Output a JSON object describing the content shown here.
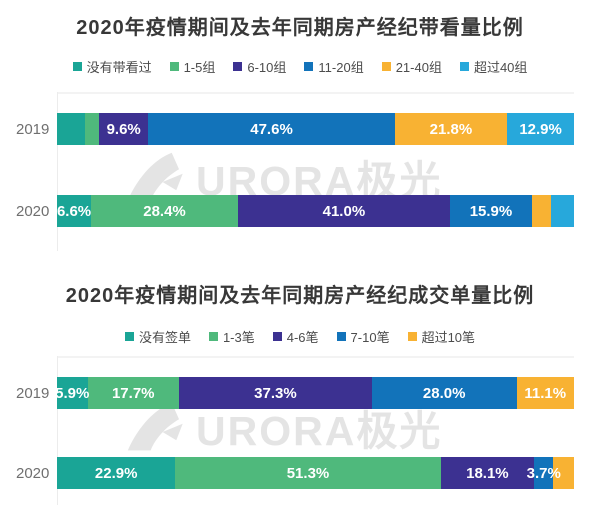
{
  "watermark": {
    "text": "URORA极光",
    "color": "#e4e4e4"
  },
  "chart_data": [
    {
      "type": "bar",
      "variant": "horizontal-stacked",
      "unit": "%",
      "title": "2020年疫情期间及去年同期房产经纪带看量比例",
      "categories": [
        "2019",
        "2020"
      ],
      "legend_position": "top",
      "grid": false,
      "xlim": [
        0,
        100
      ],
      "series": [
        {
          "name": "没有带看过",
          "color": "#1AA596",
          "values": [
            5.5,
            6.6
          ],
          "labels": [
            "",
            "6.6%"
          ]
        },
        {
          "name": "1-5组",
          "color": "#4FB97C",
          "values": [
            2.6,
            28.4
          ],
          "labels": [
            "",
            "28.4%"
          ]
        },
        {
          "name": "6-10组",
          "color": "#3C3191",
          "values": [
            9.6,
            41.0
          ],
          "labels": [
            "9.6%",
            "41.0%"
          ]
        },
        {
          "name": "11-20组",
          "color": "#1273BA",
          "values": [
            47.6,
            15.9
          ],
          "labels": [
            "47.6%",
            "15.9%"
          ]
        },
        {
          "name": "21-40组",
          "color": "#F8B233",
          "values": [
            21.8,
            3.6
          ],
          "labels": [
            "21.8%",
            ""
          ]
        },
        {
          "name": "超过40组",
          "color": "#27A8DB",
          "values": [
            12.9,
            4.5
          ],
          "labels": [
            "12.9%",
            ""
          ]
        }
      ]
    },
    {
      "type": "bar",
      "variant": "horizontal-stacked",
      "unit": "%",
      "title": "2020年疫情期间及去年同期房产经纪成交单量比例",
      "categories": [
        "2019",
        "2020"
      ],
      "legend_position": "top",
      "grid": false,
      "xlim": [
        0,
        100
      ],
      "series": [
        {
          "name": "没有签单",
          "color": "#1AA596",
          "values": [
            5.9,
            22.9
          ],
          "labels": [
            "5.9%",
            "22.9%"
          ]
        },
        {
          "name": "1-3笔",
          "color": "#4FB97C",
          "values": [
            17.7,
            51.3
          ],
          "labels": [
            "17.7%",
            "51.3%"
          ]
        },
        {
          "name": "4-6笔",
          "color": "#3C3191",
          "values": [
            37.3,
            18.1
          ],
          "labels": [
            "37.3%",
            "18.1%"
          ]
        },
        {
          "name": "7-10笔",
          "color": "#1273BA",
          "values": [
            28.0,
            3.7
          ],
          "labels": [
            "28.0%",
            "3.7%"
          ]
        },
        {
          "name": "超过10笔",
          "color": "#F8B233",
          "values": [
            11.1,
            4.0
          ],
          "labels": [
            "11.1%",
            ""
          ]
        }
      ]
    }
  ]
}
